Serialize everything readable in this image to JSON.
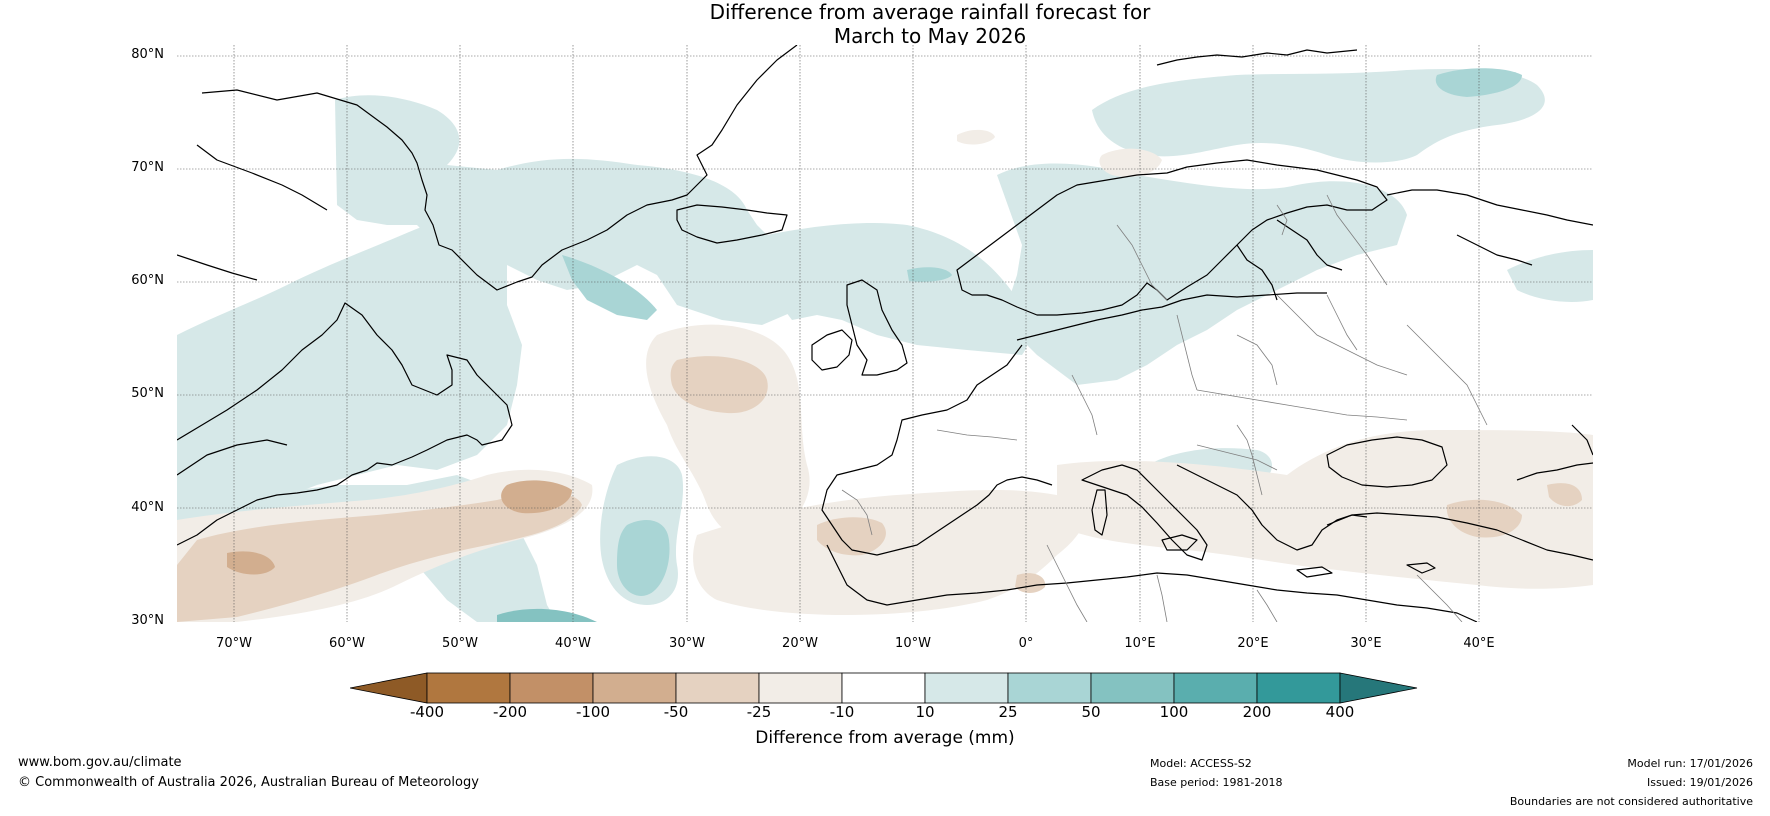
{
  "title_line1": "Difference from average rainfall forecast for",
  "title_line2": "March to May 2026",
  "latitude_labels": [
    "80°N",
    "70°N",
    "60°N",
    "50°N",
    "40°N",
    "30°N"
  ],
  "longitude_labels": [
    "70°W",
    "60°W",
    "50°W",
    "40°W",
    "30°W",
    "20°W",
    "10°W",
    "0°",
    "10°E",
    "20°E",
    "30°E",
    "40°E"
  ],
  "map_extent": {
    "lon_min": -75,
    "lon_max": 50,
    "lat_min": 30,
    "lat_max": 81
  },
  "colorbar": {
    "ticks": [
      "-400",
      "-200",
      "-100",
      "-50",
      "-25",
      "-10",
      "10",
      "25",
      "50",
      "100",
      "200",
      "400"
    ],
    "colors": [
      "#8e5a26",
      "#b0773f",
      "#c29067",
      "#d2ae8f",
      "#e5d2c1",
      "#f2ede7",
      "#ffffff",
      "#d6e8e8",
      "#a9d5d5",
      "#84c2c1",
      "#5aaeae",
      "#33999a",
      "#26777a"
    ],
    "label": "Difference from average (mm)"
  },
  "colors": {
    "land_outline": "#000000",
    "border_outline": "#7f7f7f",
    "gridline": "#555555",
    "dry_light": "#f2ede7",
    "dry_mid": "#e5d2c1",
    "dry_strong": "#d2ae8f",
    "wet_light": "#d6e8e8",
    "wet_mid": "#a9d5d5",
    "wet_strong": "#84c2c1",
    "wet_very_strong": "#5aaeae"
  },
  "footer": {
    "website": "www.bom.gov.au/climate",
    "copyright": "© Commonwealth of Australia 2026, Australian Bureau of Meteorology",
    "model": "Model: ACCESS-S2",
    "base_period": "Base period: 1981-2018",
    "model_run": "Model run: 17/01/2026",
    "issued": "Issued: 19/01/2026",
    "disclaimer": "Boundaries are not considered authoritative"
  }
}
